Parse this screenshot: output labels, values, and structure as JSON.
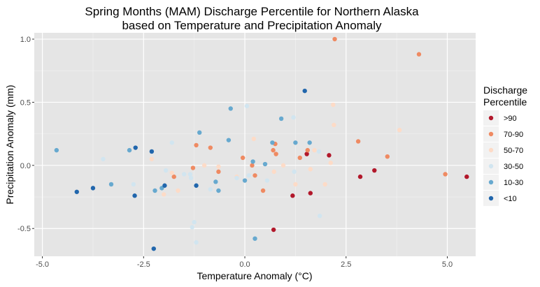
{
  "chart_data": {
    "type": "scatter",
    "title": [
      "Spring Months (MAM) Discharge Percentile for Northern Alaska",
      "based on Temperature and Precipitation Anomaly"
    ],
    "xlabel": "Temperature Anomaly (°C)",
    "ylabel": "Precipitation Anomaly (mm)",
    "xlim": [
      -5.2,
      5.7
    ],
    "ylim": [
      -0.72,
      1.05
    ],
    "xticks": [
      -5.0,
      -2.5,
      0.0,
      2.5,
      5.0
    ],
    "xtick_labels": [
      "-5.0",
      "-2.5",
      "0.0",
      "2.5",
      "5.0"
    ],
    "yticks": [
      -0.5,
      0.0,
      0.5,
      1.0
    ],
    "ytick_labels": [
      "-0.5",
      "0.0",
      "0.5",
      "1.0"
    ],
    "grid": true,
    "background": "#e5e5e5",
    "legend": {
      "title": [
        "Discharge",
        "Percentile"
      ],
      "position": "right",
      "entries": [
        {
          "label": ">90",
          "color": "#b2182b"
        },
        {
          "label": "70-90",
          "color": "#ef8a62"
        },
        {
          "label": "50-70",
          "color": "#fddbc7"
        },
        {
          "label": "30-50",
          "color": "#d1e5f0"
        },
        {
          "label": "10-30",
          "color": "#67a9cf"
        },
        {
          "label": "<10",
          "color": "#2166ac"
        }
      ]
    },
    "series": [
      {
        "name": ">90",
        "color": "#b2182b",
        "points": [
          [
            5.48,
            -0.09
          ],
          [
            3.2,
            -0.04
          ],
          [
            2.85,
            -0.09
          ],
          [
            2.08,
            0.08
          ],
          [
            1.62,
            -0.22
          ],
          [
            1.53,
            0.09
          ],
          [
            1.18,
            -0.24
          ],
          [
            0.71,
            -0.51
          ]
        ]
      },
      {
        "name": "70-90",
        "color": "#ef8a62",
        "points": [
          [
            2.22,
            1.0
          ],
          [
            4.3,
            0.88
          ],
          [
            2.8,
            0.19
          ],
          [
            3.52,
            0.07
          ],
          [
            4.95,
            -0.07
          ],
          [
            1.36,
            0.06
          ],
          [
            1.55,
            0.12
          ],
          [
            0.75,
            0.17
          ],
          [
            0.7,
            0.12
          ],
          [
            0.77,
            0.09
          ],
          [
            -1.2,
            0.16
          ],
          [
            -0.85,
            0.14
          ],
          [
            -0.65,
            -0.05
          ],
          [
            -1.28,
            -0.02
          ],
          [
            -1.75,
            -0.09
          ],
          [
            -0.05,
            0.06
          ],
          [
            0.18,
            0.0
          ],
          [
            0.25,
            -0.08
          ],
          [
            0.45,
            -0.2
          ]
        ]
      },
      {
        "name": "50-70",
        "color": "#fddbc7",
        "points": [
          [
            2.18,
            0.48
          ],
          [
            2.2,
            0.32
          ],
          [
            3.82,
            0.28
          ],
          [
            2.12,
            0.02
          ],
          [
            1.98,
            -0.15
          ],
          [
            1.62,
            -0.03
          ],
          [
            1.72,
            0.12
          ],
          [
            1.25,
            -0.15
          ],
          [
            0.95,
            0.0
          ],
          [
            0.72,
            -0.05
          ],
          [
            0.22,
            0.21
          ],
          [
            -0.2,
            -0.09
          ],
          [
            -0.65,
            -0.01
          ],
          [
            -1.0,
            0.0
          ],
          [
            -1.8,
            -0.06
          ],
          [
            -1.65,
            -0.2
          ],
          [
            -2.0,
            -0.23
          ],
          [
            -2.3,
            0.05
          ]
        ]
      },
      {
        "name": "30-50",
        "color": "#d1e5f0",
        "points": [
          [
            0.05,
            0.47
          ],
          [
            1.2,
            0.38
          ],
          [
            1.83,
            0.11
          ],
          [
            1.22,
            -0.05
          ],
          [
            1.85,
            -0.4
          ],
          [
            -3.5,
            0.05
          ],
          [
            -2.75,
            -0.15
          ],
          [
            -1.8,
            0.18
          ],
          [
            -1.95,
            -0.04
          ],
          [
            -1.5,
            -0.07
          ],
          [
            -1.35,
            -0.07
          ],
          [
            -1.33,
            -0.1
          ],
          [
            -1.3,
            -0.49
          ],
          [
            -1.25,
            -0.45
          ],
          [
            -1.2,
            -0.61
          ],
          [
            -0.85,
            -0.19
          ],
          [
            -0.2,
            -0.1
          ],
          [
            0.1,
            -0.08
          ],
          [
            0.55,
            -0.12
          ]
        ]
      },
      {
        "name": "10-30",
        "color": "#67a9cf",
        "points": [
          [
            -4.65,
            0.12
          ],
          [
            -3.3,
            -0.15
          ],
          [
            -2.85,
            0.12
          ],
          [
            -2.22,
            -0.2
          ],
          [
            -2.05,
            -0.18
          ],
          [
            -1.12,
            0.26
          ],
          [
            -0.4,
            0.2
          ],
          [
            -0.35,
            0.45
          ],
          [
            -0.72,
            -0.13
          ],
          [
            -0.65,
            -0.2
          ],
          [
            0.0,
            -0.12
          ],
          [
            0.2,
            0.03
          ],
          [
            0.25,
            -0.58
          ],
          [
            0.5,
            0.01
          ],
          [
            0.68,
            0.18
          ],
          [
            0.9,
            0.37
          ],
          [
            1.25,
            0.18
          ],
          [
            1.6,
            0.18
          ]
        ]
      },
      {
        "name": "<10",
        "color": "#2166ac",
        "points": [
          [
            -4.15,
            -0.21
          ],
          [
            -3.75,
            -0.18
          ],
          [
            -2.7,
            0.14
          ],
          [
            -2.3,
            0.11
          ],
          [
            -2.72,
            -0.24
          ],
          [
            -2.25,
            -0.66
          ],
          [
            -1.98,
            -0.16
          ],
          [
            -1.2,
            -0.16
          ],
          [
            1.48,
            0.59
          ]
        ]
      }
    ]
  }
}
